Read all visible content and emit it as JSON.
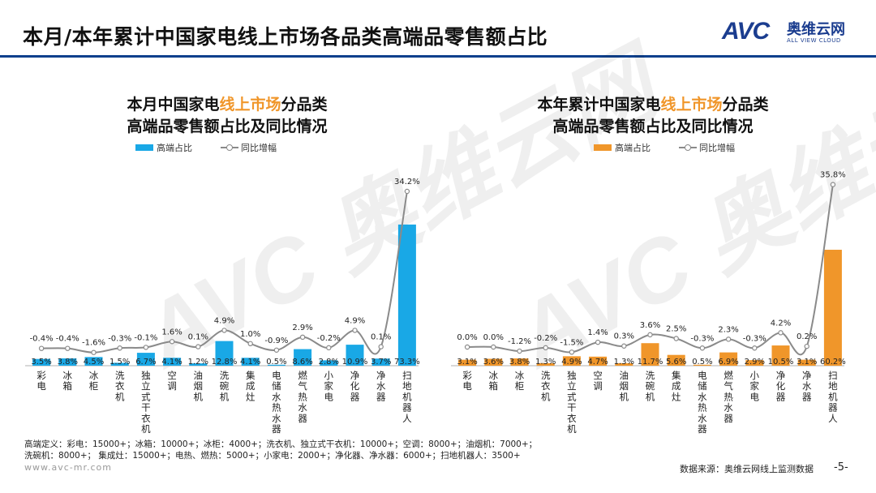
{
  "header": {
    "title": "本月/本年累计中国家电线上市场各品类高端品零售额占比"
  },
  "logo": {
    "mark": "AVC",
    "cn": "奥维云网",
    "en": "ALL VIEW CLOUD"
  },
  "watermark": "AVC 奥维云网",
  "colors": {
    "month_bar": "#19a8e6",
    "year_bar": "#f0962a",
    "line": "#8a8a8a",
    "title_rule": "#0b3f8c",
    "highlight": "#f0962a"
  },
  "chart_data": [
    {
      "type": "bar",
      "id": "month",
      "title_line1_pre": "本月中国家电",
      "title_line1_hl": "线上市场",
      "title_line1_post": "分品类",
      "title_line2": "高端品零售额占比及同比情况",
      "legend": {
        "bar": "高端占比",
        "line": "同比增幅"
      },
      "categories": [
        "彩电",
        "冰箱",
        "冰柜",
        "洗衣机",
        "独立式干衣机",
        "空调",
        "油烟机",
        "洗碗机",
        "集成灶",
        "电储水热水器",
        "燃气热水器",
        "小家电",
        "净化器",
        "净水器",
        "扫地机器人"
      ],
      "series": [
        {
          "name": "高端占比",
          "values": [
            3.5,
            3.8,
            4.5,
            1.5,
            6.7,
            4.1,
            1.2,
            12.8,
            4.1,
            0.5,
            8.6,
            2.8,
            10.9,
            3.7,
            73.3
          ]
        },
        {
          "name": "同比增幅",
          "values": [
            -0.4,
            -0.4,
            -1.6,
            -0.3,
            -0.1,
            1.6,
            0.1,
            4.9,
            1.0,
            -0.9,
            2.9,
            -0.2,
            4.9,
            0.1,
            34.2
          ]
        }
      ],
      "bar_labels": [
        "3.5%",
        "3.8%",
        "4.5%",
        "1.5%",
        "6.7%",
        "4.1%",
        "1.2%",
        "12.8%",
        "4.1%",
        "0.5%",
        "8.6%",
        "2.8%",
        "10.9%",
        "3.7%",
        "73.3%"
      ],
      "line_labels": [
        "-0.4%",
        "-0.4%",
        "-1.6%",
        "-0.3%",
        "-0.1%",
        "1.6%",
        "0.1%",
        "4.9%",
        "1.0%",
        "-0.9%",
        "2.9%",
        "-0.2%",
        "4.9%",
        "0.1%",
        "34.2%"
      ],
      "ylim": [
        0,
        80
      ]
    },
    {
      "type": "bar",
      "id": "year",
      "title_line1_pre": "本年累计中国家电",
      "title_line1_hl": "线上市场",
      "title_line1_post": "分品类",
      "title_line2": "高端品零售额占比及同比情况",
      "legend": {
        "bar": "高端占比",
        "line": "同比增幅"
      },
      "categories": [
        "彩电",
        "冰箱",
        "冰柜",
        "洗衣机",
        "独立式干衣机",
        "空调",
        "油烟机",
        "洗碗机",
        "集成灶",
        "电储水热水器",
        "燃气热水器",
        "小家电",
        "净化器",
        "净水器",
        "扫地机器人"
      ],
      "series": [
        {
          "name": "高端占比",
          "values": [
            3.1,
            3.6,
            3.8,
            1.3,
            4.9,
            4.7,
            1.3,
            11.7,
            5.6,
            0.5,
            6.9,
            2.9,
            10.5,
            3.1,
            60.2
          ]
        },
        {
          "name": "同比增幅",
          "values": [
            0.0,
            0.0,
            -1.2,
            -0.2,
            -1.5,
            1.4,
            0.3,
            3.6,
            2.5,
            -0.3,
            2.3,
            -0.3,
            4.2,
            0.2,
            35.8
          ]
        }
      ],
      "bar_labels": [
        "3.1%",
        "3.6%",
        "3.8%",
        "1.3%",
        "4.9%",
        "4.7%",
        "1.3%",
        "11.7%",
        "5.6%",
        "0.5%",
        "6.9%",
        "2.9%",
        "10.5%",
        "3.1%",
        "60.2%"
      ],
      "line_labels": [
        "0.0%",
        "0.0%",
        "-1.2%",
        "-0.2%",
        "-1.5%",
        "1.4%",
        "0.3%",
        "3.6%",
        "2.5%",
        "-0.3%",
        "2.3%",
        "-0.3%",
        "4.2%",
        "0.2%",
        "35.8%"
      ],
      "ylim": [
        0,
        80
      ]
    }
  ],
  "footer": {
    "definition": "高端定义：彩电：15000+；冰箱：10000+；冰柜：4000+；洗衣机、独立式干衣机：10000+；空调：8000+；油烟机：7000+；洗碗机：8000+；  集成灶：15000+；电热、燃热：5000+；小家电：2000+；净化器、净水器：6000+；扫地机器人：3500+",
    "website": "www.avc-mr.com",
    "source": "数据来源：奥维云网线上监测数据",
    "page": "-5-"
  }
}
